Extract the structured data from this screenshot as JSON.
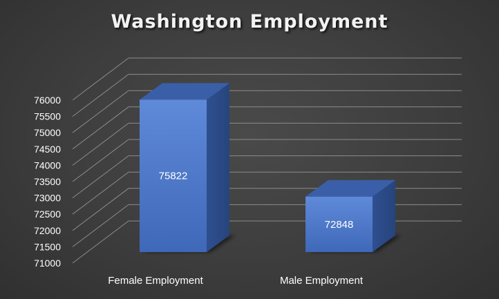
{
  "chart_data": {
    "type": "bar",
    "title": "Washington Employment",
    "categories": [
      "Female Employment",
      "Male Employment"
    ],
    "values": [
      75822,
      72848
    ],
    "data_labels": [
      "75822",
      "72848"
    ],
    "ylim": [
      71000,
      76000
    ],
    "y_ticks": [
      "76000",
      "75500",
      "75000",
      "74500",
      "74000",
      "73500",
      "73000",
      "72500",
      "72000",
      "71500",
      "71000"
    ],
    "y_tick_values": [
      76000,
      75500,
      75000,
      74500,
      74000,
      73500,
      73000,
      72500,
      72000,
      71500,
      71000
    ],
    "xlabel": "",
    "ylabel": "",
    "grid": true,
    "legend": "none",
    "style": "3d-column",
    "colors": {
      "bar_front": "#4472c4",
      "bar_front_light": "#5b86d6",
      "bar_top": "#3a5fa8",
      "bar_side": "#2c4a86",
      "gridline": "#8c8c8c",
      "text": "#ffffff",
      "background": "#404040"
    }
  }
}
